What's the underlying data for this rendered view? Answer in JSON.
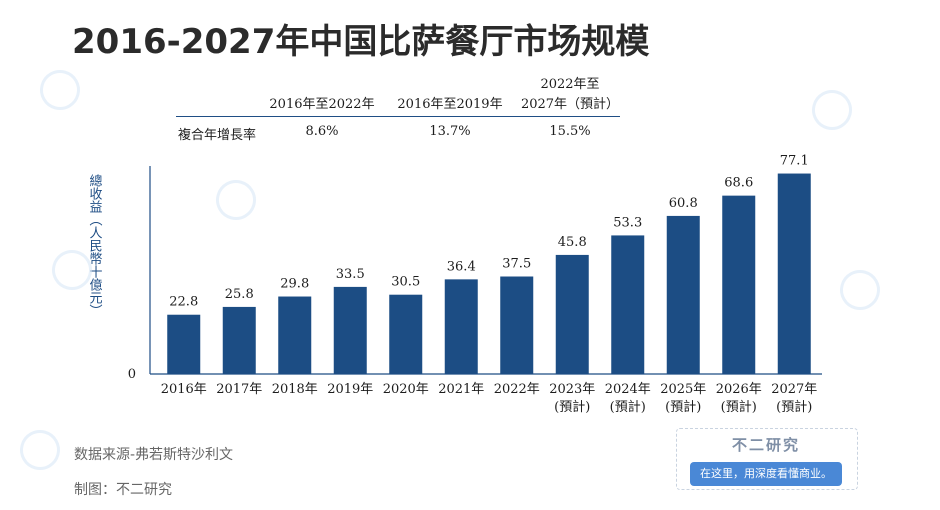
{
  "title": "2016-2027年中国比萨餐厅市场规模",
  "cagr_table": {
    "row_label": "複合年增長率",
    "columns": [
      {
        "header_line1": "",
        "header_line2": "2016年至2022年",
        "value": "8.6%"
      },
      {
        "header_line1": "",
        "header_line2": "2016年至2019年",
        "value": "13.7%"
      },
      {
        "header_line1": "2022年至",
        "header_line2": "2027年（預計）",
        "value": "15.5%"
      }
    ]
  },
  "chart_data": {
    "type": "bar",
    "ylabel": "總收益（人民幣十億元）",
    "categories": [
      "2016年",
      "2017年",
      "2018年",
      "2019年",
      "2020年",
      "2021年",
      "2022年",
      "2023年",
      "2024年",
      "2025年",
      "2026年",
      "2027年"
    ],
    "category_sublabels": [
      "",
      "",
      "",
      "",
      "",
      "",
      "",
      "(預計)",
      "(預計)",
      "(預計)",
      "(預計)",
      "(預計)"
    ],
    "values": [
      22.8,
      25.8,
      29.8,
      33.5,
      30.5,
      36.4,
      37.5,
      45.8,
      53.3,
      60.8,
      68.6,
      77.1
    ],
    "value_labels": [
      "22.8",
      "25.8",
      "29.8",
      "33.5",
      "30.5",
      "36.4",
      "37.5",
      "45.8",
      "53.3",
      "60.8",
      "68.6",
      "77.1"
    ],
    "y_zero_label": "0",
    "ylim": [
      0,
      80
    ],
    "bar_color": "#1c4d84"
  },
  "footer": {
    "source": "数据来源-弗若斯特沙利文",
    "maker": "制图：不二研究"
  },
  "brand": {
    "name": "不二研究",
    "slogan": "在这里，用深度看懂商业。"
  }
}
